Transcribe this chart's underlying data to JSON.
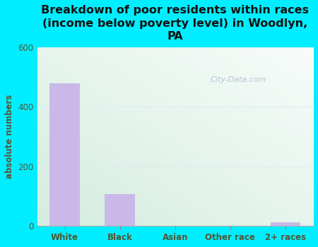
{
  "title": "Breakdown of poor residents within races\n(income below poverty level) in Woodlyn,\nPA",
  "categories": [
    "White",
    "Black",
    "Asian",
    "Other race",
    "2+ races"
  ],
  "values": [
    480,
    105,
    0,
    0,
    10
  ],
  "bar_color": "#c9b8e8",
  "ylabel": "absolute numbers",
  "ylim": [
    0,
    600
  ],
  "yticks": [
    0,
    200,
    400,
    600
  ],
  "bg_outer": "#00eeff",
  "bg_plot_topleft": "#d4ede0",
  "bg_plot_topright": "#f0faf5",
  "bg_plot_bottom": "#e8f5ec",
  "title_color": "#111111",
  "title_fontsize": 11.5,
  "axis_label_color": "#555533",
  "tick_color": "#555533",
  "watermark": "City-Data.com",
  "watermark_color": "#aabbcc",
  "grid_color": "#ddeeee",
  "figsize": [
    4.5,
    3.5
  ],
  "dpi": 100
}
